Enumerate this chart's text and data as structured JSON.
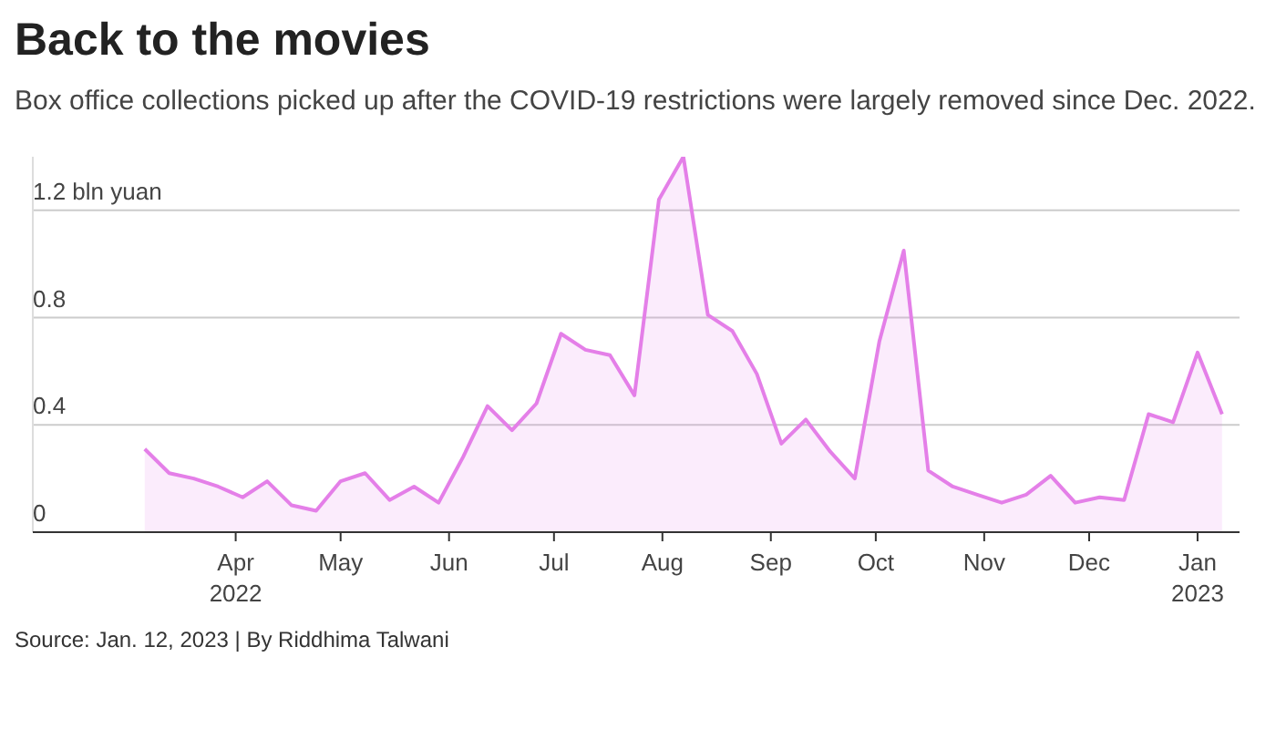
{
  "chart_data": {
    "type": "area",
    "title": "Back to the movies",
    "subtitle": "Box office collections picked up after the COVID-19 restrictions were largely removed since Dec. 2022.",
    "annotations": [
      "Source: Jan. 12, 2023 | By Riddhima Talwani"
    ],
    "x": [
      "2022-03-06",
      "2022-03-13",
      "2022-03-20",
      "2022-03-27",
      "2022-04-03",
      "2022-04-10",
      "2022-04-17",
      "2022-04-24",
      "2022-05-01",
      "2022-05-08",
      "2022-05-15",
      "2022-05-22",
      "2022-05-29",
      "2022-06-05",
      "2022-06-12",
      "2022-06-19",
      "2022-06-26",
      "2022-07-03",
      "2022-07-10",
      "2022-07-17",
      "2022-07-24",
      "2022-07-31",
      "2022-08-07",
      "2022-08-14",
      "2022-08-21",
      "2022-08-28",
      "2022-09-04",
      "2022-09-11",
      "2022-09-18",
      "2022-09-25",
      "2022-10-02",
      "2022-10-09",
      "2022-10-16",
      "2022-10-23",
      "2022-10-30",
      "2022-11-06",
      "2022-11-13",
      "2022-11-20",
      "2022-11-27",
      "2022-12-04",
      "2022-12-11",
      "2022-12-18",
      "2022-12-25",
      "2023-01-01",
      "2023-01-08"
    ],
    "series": [
      {
        "color": "#e47fe8",
        "values": [
          0.31,
          0.22,
          0.2,
          0.17,
          0.13,
          0.19,
          0.1,
          0.08,
          0.19,
          0.22,
          0.12,
          0.17,
          0.11,
          0.28,
          0.47,
          0.38,
          0.48,
          0.74,
          0.68,
          0.66,
          0.51,
          1.24,
          1.4,
          0.81,
          0.75,
          0.59,
          0.33,
          0.42,
          0.3,
          0.2,
          0.71,
          1.05,
          0.23,
          0.17,
          0.14,
          0.11,
          0.14,
          0.21,
          0.11,
          0.13,
          0.12,
          0.44,
          0.41,
          0.67,
          0.44
        ]
      }
    ],
    "xlim": [
      "2022-02-02",
      "2023-01-13"
    ],
    "xticks": [
      {
        "value": "2022-04-01",
        "label": "Apr\n2022"
      },
      {
        "value": "2022-05-01",
        "label": "May"
      },
      {
        "value": "2022-06-01",
        "label": "Jun"
      },
      {
        "value": "2022-07-01",
        "label": "Jul"
      },
      {
        "value": "2022-08-01",
        "label": "Aug"
      },
      {
        "value": "2022-09-01",
        "label": "Sep"
      },
      {
        "value": "2022-10-01",
        "label": "Oct"
      },
      {
        "value": "2022-11-01",
        "label": "Nov"
      },
      {
        "value": "2022-12-01",
        "label": "Dec"
      },
      {
        "value": "2023-01-01",
        "label": "Jan\n2023"
      }
    ],
    "yticks": [
      0,
      0.4,
      0.8,
      {
        "value": 1.2,
        "label": "1.2 bln yuan"
      }
    ],
    "ylim": [
      0,
      1.4
    ],
    "grid": "y"
  }
}
